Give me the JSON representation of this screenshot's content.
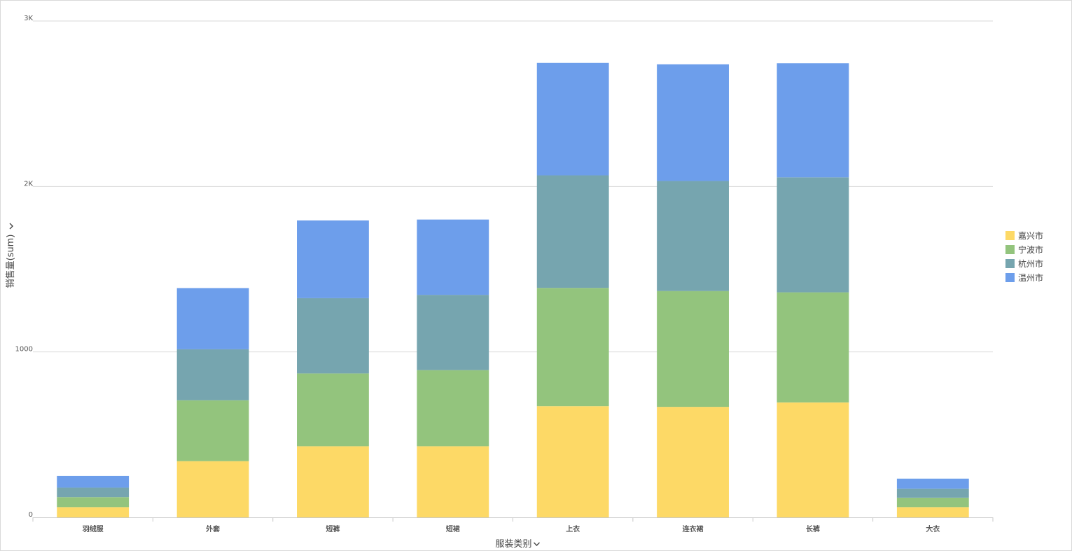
{
  "chart_data": {
    "type": "bar",
    "stacked": true,
    "categories": [
      "羽绒服",
      "外套",
      "短裤",
      "短裙",
      "上衣",
      "连衣裙",
      "长裤",
      "大衣"
    ],
    "series": [
      {
        "name": "嘉兴市",
        "color": "#fdd966",
        "values": [
          62,
          340,
          430,
          430,
          672,
          668,
          695,
          62
        ]
      },
      {
        "name": "宁波市",
        "color": "#93c47d",
        "values": [
          60,
          368,
          440,
          460,
          715,
          700,
          665,
          57
        ]
      },
      {
        "name": "杭州市",
        "color": "#76a5af",
        "values": [
          58,
          308,
          455,
          455,
          680,
          665,
          695,
          55
        ]
      },
      {
        "name": "温州市",
        "color": "#6d9eeb",
        "values": [
          70,
          370,
          470,
          455,
          680,
          705,
          690,
          60
        ]
      }
    ],
    "xlabel": "服装类别",
    "ylabel": "销售量(sum)",
    "ylim": [
      0,
      3000
    ],
    "yticks": [
      {
        "value": 0,
        "label": "0"
      },
      {
        "value": 1000,
        "label": "1000"
      },
      {
        "value": 2000,
        "label": "2K"
      },
      {
        "value": 3000,
        "label": "3K"
      }
    ],
    "grid": true,
    "legend_position": "right"
  },
  "icons": {
    "axis_dropdown": "chevron-down-icon"
  }
}
